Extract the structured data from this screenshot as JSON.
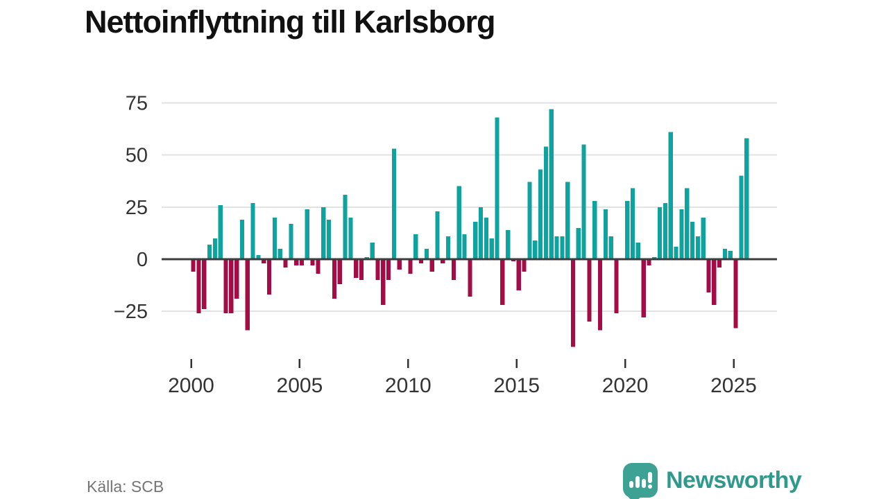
{
  "header": {
    "title": "Nettoinflyttning till Karlsborg"
  },
  "footer": {
    "source": "Källa: SCB",
    "brand": "Newsworthy"
  },
  "colors": {
    "positive_bar": "#0ea39e",
    "negative_bar": "#a50c45",
    "gridline": "#e2e2e2",
    "zero_line": "#3d3d3d",
    "axis_text": "#333333",
    "title_text": "#111111",
    "source_text": "#757575",
    "brand_bubble": "#3da294",
    "brand_text": "#2f998c"
  },
  "chart_data": {
    "type": "bar",
    "title": "Nettoinflyttning till Karlsborg",
    "frequency": "quarterly",
    "x_start": "2000 Q1",
    "x_end": "2025 Q3",
    "values": [
      -6,
      -26,
      -24,
      7,
      10,
      26,
      -26,
      -26,
      -19,
      19,
      -34,
      27,
      2,
      -2,
      -17,
      20,
      5,
      -4,
      17,
      -3,
      -3,
      24,
      -3,
      -7,
      25,
      19,
      -19,
      -12,
      31,
      20,
      -9,
      -10,
      1,
      8,
      -10,
      -22,
      -10,
      53,
      -5,
      0,
      -7,
      12,
      -2,
      5,
      -6,
      23,
      -2,
      11,
      -10,
      35,
      12,
      -18,
      18,
      25,
      20,
      10,
      68,
      -22,
      14,
      -1,
      -15,
      -6,
      37,
      9,
      43,
      54,
      72,
      11,
      11,
      37,
      -42,
      15,
      55,
      -30,
      28,
      -34,
      24,
      11,
      -26,
      0,
      28,
      34,
      8,
      -28,
      -3,
      1,
      25,
      27,
      61,
      6,
      24,
      34,
      18,
      11,
      20,
      -16,
      -22,
      -4,
      5,
      4,
      -33,
      40,
      58
    ],
    "xticks": [
      2000,
      2005,
      2010,
      2015,
      2020,
      2025
    ],
    "yticks": [
      75,
      50,
      25,
      0,
      -25
    ],
    "ylim": [
      -45,
      80
    ],
    "grid": "horizontal",
    "legend": "none",
    "source": "SCB",
    "positive_color": "#0ea39e",
    "negative_color": "#a50c45"
  }
}
